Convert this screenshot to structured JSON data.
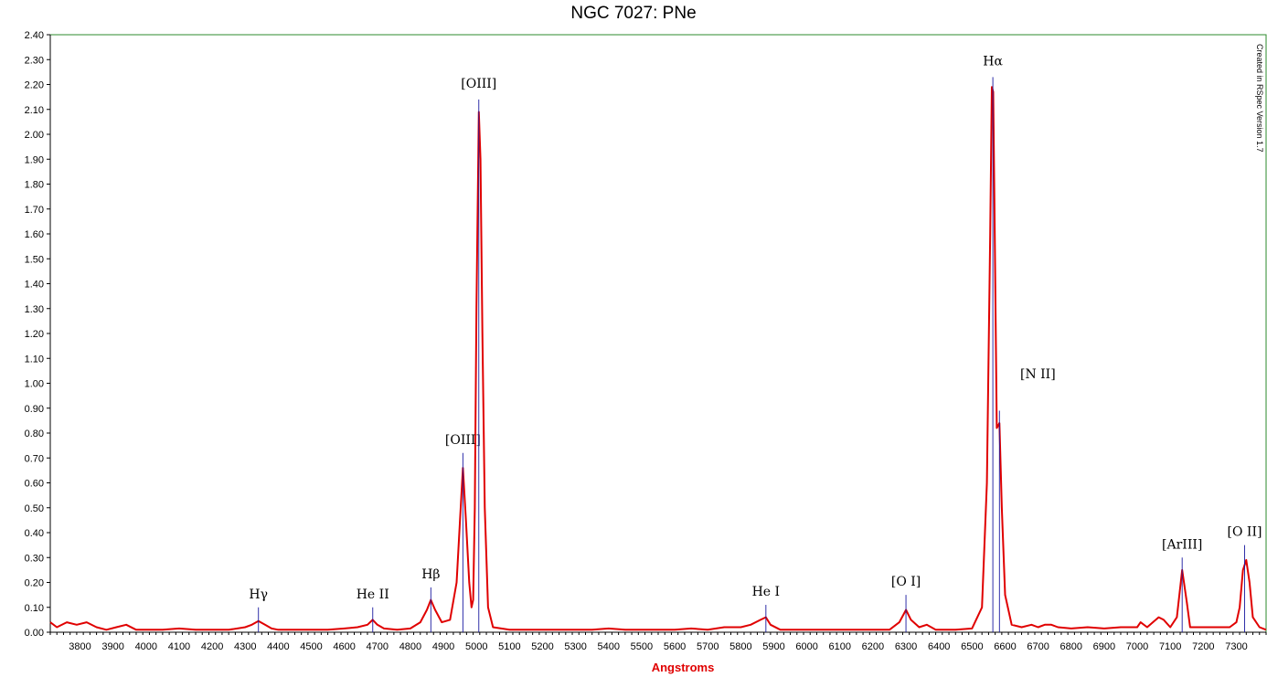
{
  "chart_data": {
    "type": "line",
    "title": "NGC 7027: PNe",
    "xlabel": "Angstroms",
    "ylabel": "",
    "credit": "Created in RSpec Version 1.7",
    "xlim": [
      3710,
      7390
    ],
    "ylim": [
      0,
      2.4
    ],
    "x_ticks": [
      3800,
      3900,
      4000,
      4100,
      4200,
      4300,
      4400,
      4500,
      4600,
      4700,
      4800,
      4900,
      5000,
      5100,
      5200,
      5300,
      5400,
      5500,
      5600,
      5700,
      5800,
      5900,
      6000,
      6100,
      6200,
      6300,
      6400,
      6500,
      6600,
      6700,
      6800,
      6900,
      7000,
      7100,
      7200,
      7300
    ],
    "y_ticks": [
      "0.00",
      "0.10",
      "0.20",
      "0.30",
      "0.40",
      "0.50",
      "0.60",
      "0.70",
      "0.80",
      "0.90",
      "1.00",
      "1.10",
      "1.20",
      "1.30",
      "1.40",
      "1.50",
      "1.60",
      "1.70",
      "1.80",
      "1.90",
      "2.00",
      "2.10",
      "2.20",
      "2.30",
      "2.40"
    ],
    "grid": false,
    "colors": {
      "series": "#e00000",
      "markers": "#1a1aa0",
      "xlabel": "#e00000",
      "frame": "#2e8b2e"
    },
    "series": [
      {
        "x": [
          3710,
          3730,
          3760,
          3790,
          3820,
          3850,
          3880,
          3910,
          3940,
          3970,
          4000,
          4050,
          4100,
          4150,
          4200,
          4250,
          4300,
          4320,
          4340,
          4360,
          4380,
          4400,
          4450,
          4500,
          4550,
          4600,
          4640,
          4670,
          4686,
          4700,
          4720,
          4760,
          4800,
          4830,
          4850,
          4862,
          4875,
          4895,
          4920,
          4940,
          4950,
          4959,
          4968,
          4978,
          4985,
          4990,
          4995,
          5000,
          5007,
          5012,
          5018,
          5025,
          5035,
          5050,
          5100,
          5150,
          5200,
          5250,
          5300,
          5350,
          5400,
          5450,
          5500,
          5550,
          5600,
          5650,
          5700,
          5750,
          5800,
          5830,
          5860,
          5876,
          5890,
          5920,
          5950,
          6000,
          6100,
          6200,
          6250,
          6280,
          6300,
          6315,
          6340,
          6363,
          6390,
          6450,
          6500,
          6530,
          6545,
          6555,
          6560,
          6564,
          6568,
          6575,
          6583,
          6590,
          6600,
          6620,
          6650,
          6680,
          6700,
          6720,
          6740,
          6760,
          6800,
          6850,
          6900,
          6950,
          7000,
          7010,
          7030,
          7065,
          7080,
          7100,
          7120,
          7136,
          7150,
          7160,
          7180,
          7200,
          7220,
          7250,
          7280,
          7300,
          7310,
          7320,
          7330,
          7340,
          7350,
          7370,
          7390
        ],
        "y": [
          0.04,
          0.02,
          0.04,
          0.03,
          0.04,
          0.02,
          0.01,
          0.02,
          0.03,
          0.01,
          0.01,
          0.01,
          0.015,
          0.01,
          0.01,
          0.01,
          0.02,
          0.03,
          0.045,
          0.03,
          0.015,
          0.01,
          0.01,
          0.01,
          0.01,
          0.015,
          0.02,
          0.03,
          0.05,
          0.03,
          0.015,
          0.01,
          0.015,
          0.04,
          0.09,
          0.13,
          0.09,
          0.04,
          0.05,
          0.2,
          0.45,
          0.66,
          0.45,
          0.2,
          0.1,
          0.13,
          0.5,
          1.3,
          2.09,
          1.9,
          1.2,
          0.5,
          0.1,
          0.02,
          0.01,
          0.01,
          0.01,
          0.01,
          0.01,
          0.01,
          0.015,
          0.01,
          0.01,
          0.01,
          0.01,
          0.015,
          0.01,
          0.02,
          0.02,
          0.03,
          0.05,
          0.06,
          0.03,
          0.01,
          0.01,
          0.01,
          0.01,
          0.01,
          0.01,
          0.04,
          0.09,
          0.05,
          0.02,
          0.03,
          0.01,
          0.01,
          0.015,
          0.1,
          0.6,
          1.6,
          2.19,
          2.17,
          1.7,
          0.82,
          0.84,
          0.5,
          0.15,
          0.03,
          0.02,
          0.03,
          0.02,
          0.03,
          0.03,
          0.02,
          0.015,
          0.02,
          0.015,
          0.02,
          0.02,
          0.04,
          0.02,
          0.06,
          0.05,
          0.02,
          0.06,
          0.25,
          0.12,
          0.02,
          0.02,
          0.02,
          0.02,
          0.02,
          0.02,
          0.04,
          0.1,
          0.25,
          0.29,
          0.2,
          0.06,
          0.02,
          0.01
        ]
      }
    ],
    "annotations": [
      {
        "text": "Hγ",
        "x": 4340,
        "peak": 0.1
      },
      {
        "text": "He II",
        "x": 4686,
        "peak": 0.1
      },
      {
        "text": "Hβ",
        "x": 4862,
        "peak": 0.18
      },
      {
        "text": "[OIII]",
        "x": 4959,
        "peak": 0.72
      },
      {
        "text": "[OIII]",
        "x": 5007,
        "peak": 2.14
      },
      {
        "text": "He I",
        "x": 5876,
        "peak": 0.11
      },
      {
        "text": "[O I]",
        "x": 6300,
        "peak": 0.15
      },
      {
        "text": "Hα",
        "x": 6563,
        "peak": 2.23
      },
      {
        "text": "[N II]",
        "x": 6583,
        "peak": 0.89
      },
      {
        "text": "[ArIII]",
        "x": 7136,
        "peak": 0.3
      },
      {
        "text": "[O II]",
        "x": 7325,
        "peak": 0.35
      }
    ]
  }
}
